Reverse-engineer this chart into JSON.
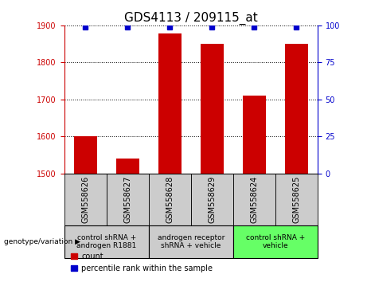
{
  "title": "GDS4113 / 209115_at",
  "samples": [
    "GSM558626",
    "GSM558627",
    "GSM558628",
    "GSM558629",
    "GSM558624",
    "GSM558625"
  ],
  "counts": [
    1601,
    1541,
    1878,
    1851,
    1711,
    1851
  ],
  "percentile_ranks": [
    99,
    99,
    99,
    99,
    99,
    99
  ],
  "ylim_left": [
    1500,
    1900
  ],
  "ylim_right": [
    0,
    100
  ],
  "yticks_left": [
    1500,
    1600,
    1700,
    1800,
    1900
  ],
  "yticks_right": [
    0,
    25,
    50,
    75,
    100
  ],
  "bar_color": "#cc0000",
  "dot_color": "#0000cc",
  "groups_info": [
    {
      "indices": [
        0,
        1
      ],
      "label": "control shRNA +\nandrogen R1881",
      "bg": "#cccccc"
    },
    {
      "indices": [
        2,
        3
      ],
      "label": "androgen receptor\nshRNA + vehicle",
      "bg": "#cccccc"
    },
    {
      "indices": [
        4,
        5
      ],
      "label": "control shRNA +\nvehicle",
      "bg": "#66ff66"
    }
  ],
  "xlabel_genotype": "genotype/variation",
  "legend_count_label": "count",
  "legend_percentile_label": "percentile rank within the sample",
  "title_fontsize": 11,
  "tick_fontsize": 7,
  "group_label_fontsize": 6.5,
  "bar_width": 0.55,
  "sample_box_color": "#cccccc"
}
